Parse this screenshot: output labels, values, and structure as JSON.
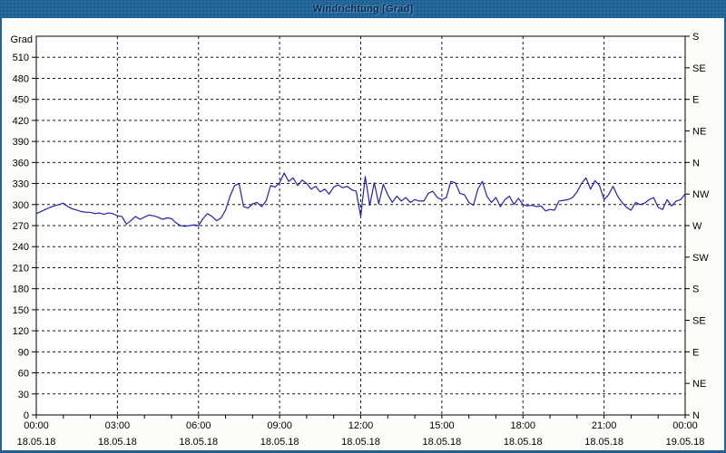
{
  "window": {
    "title": "Windrichtung [Grad]",
    "frame_color": "#1e6295",
    "content_background": "#fcfdfb"
  },
  "chart_data": {
    "type": "line",
    "title": "Windrichtung [Grad]",
    "series_name": "Windrichtung",
    "series_color": "#2121b2",
    "grid_color": "#1a1a1a",
    "axis_color": "#000000",
    "label_color": "#000000",
    "grid": "on",
    "y_left": {
      "unit_label": "Grad",
      "min": 0,
      "max": 540,
      "tick_step": 30,
      "tick_labels": [
        "0",
        "30",
        "60",
        "90",
        "120",
        "150",
        "180",
        "210",
        "240",
        "270",
        "300",
        "330",
        "360",
        "390",
        "420",
        "450",
        "480",
        "510"
      ]
    },
    "y_right": {
      "ticks": [
        {
          "value": 0,
          "label": "N"
        },
        {
          "value": 45,
          "label": "NE"
        },
        {
          "value": 90,
          "label": "E"
        },
        {
          "value": 135,
          "label": "SE"
        },
        {
          "value": 180,
          "label": "S"
        },
        {
          "value": 225,
          "label": "SW"
        },
        {
          "value": 270,
          "label": "W"
        },
        {
          "value": 315,
          "label": "NW"
        },
        {
          "value": 360,
          "label": "N"
        },
        {
          "value": 405,
          "label": "NE"
        },
        {
          "value": 450,
          "label": "E"
        },
        {
          "value": 495,
          "label": "SE"
        },
        {
          "value": 540,
          "label": "S"
        }
      ]
    },
    "x": {
      "range_hours": [
        0,
        24
      ],
      "minor_tick_hours": 1,
      "grid_step_hours": 3,
      "ticks": [
        {
          "hour": 0,
          "time": "00:00",
          "date": "18.05.18"
        },
        {
          "hour": 3,
          "time": "03:00",
          "date": "18.05.18"
        },
        {
          "hour": 6,
          "time": "06:00",
          "date": "18.05.18"
        },
        {
          "hour": 9,
          "time": "09:00",
          "date": "18.05.18"
        },
        {
          "hour": 12,
          "time": "12:00",
          "date": "18.05.18"
        },
        {
          "hour": 15,
          "time": "15:00",
          "date": "18.05.18"
        },
        {
          "hour": 18,
          "time": "18:00",
          "date": "18.05.18"
        },
        {
          "hour": 21,
          "time": "21:00",
          "date": "18.05.18"
        },
        {
          "hour": 24,
          "time": "00:00",
          "date": "19.05.18"
        }
      ]
    },
    "points_format": [
      "minute_of_day",
      "direction_deg"
    ],
    "points": [
      [
        0,
        287
      ],
      [
        10,
        290
      ],
      [
        20,
        293
      ],
      [
        30,
        296
      ],
      [
        40,
        298
      ],
      [
        50,
        300
      ],
      [
        60,
        302
      ],
      [
        70,
        297
      ],
      [
        80,
        294
      ],
      [
        90,
        292
      ],
      [
        100,
        290
      ],
      [
        110,
        289
      ],
      [
        120,
        289
      ],
      [
        130,
        287
      ],
      [
        140,
        288
      ],
      [
        150,
        286
      ],
      [
        160,
        288
      ],
      [
        170,
        287
      ],
      [
        180,
        284
      ],
      [
        190,
        283
      ],
      [
        200,
        272
      ],
      [
        210,
        277
      ],
      [
        220,
        283
      ],
      [
        230,
        279
      ],
      [
        240,
        282
      ],
      [
        250,
        285
      ],
      [
        260,
        284
      ],
      [
        270,
        282
      ],
      [
        280,
        279
      ],
      [
        290,
        281
      ],
      [
        300,
        280
      ],
      [
        310,
        274
      ],
      [
        320,
        270
      ],
      [
        330,
        269
      ],
      [
        340,
        270
      ],
      [
        350,
        271
      ],
      [
        360,
        270
      ],
      [
        370,
        280
      ],
      [
        380,
        287
      ],
      [
        390,
        283
      ],
      [
        400,
        277
      ],
      [
        410,
        281
      ],
      [
        420,
        292
      ],
      [
        430,
        312
      ],
      [
        440,
        327
      ],
      [
        450,
        330
      ],
      [
        460,
        297
      ],
      [
        470,
        295
      ],
      [
        480,
        301
      ],
      [
        490,
        303
      ],
      [
        500,
        297
      ],
      [
        510,
        305
      ],
      [
        520,
        327
      ],
      [
        530,
        325
      ],
      [
        540,
        331
      ],
      [
        550,
        345
      ],
      [
        560,
        333
      ],
      [
        570,
        338
      ],
      [
        580,
        327
      ],
      [
        590,
        335
      ],
      [
        600,
        330
      ],
      [
        610,
        322
      ],
      [
        620,
        326
      ],
      [
        630,
        318
      ],
      [
        640,
        322
      ],
      [
        650,
        315
      ],
      [
        660,
        325
      ],
      [
        670,
        328
      ],
      [
        680,
        324
      ],
      [
        690,
        326
      ],
      [
        700,
        321
      ],
      [
        710,
        319
      ],
      [
        720,
        283
      ],
      [
        730,
        340
      ],
      [
        740,
        299
      ],
      [
        750,
        331
      ],
      [
        760,
        301
      ],
      [
        770,
        329
      ],
      [
        780,
        314
      ],
      [
        790,
        303
      ],
      [
        800,
        312
      ],
      [
        810,
        305
      ],
      [
        820,
        310
      ],
      [
        830,
        303
      ],
      [
        840,
        307
      ],
      [
        850,
        305
      ],
      [
        860,
        305
      ],
      [
        870,
        316
      ],
      [
        880,
        319
      ],
      [
        890,
        310
      ],
      [
        900,
        307
      ],
      [
        910,
        310
      ],
      [
        920,
        333
      ],
      [
        930,
        331
      ],
      [
        940,
        316
      ],
      [
        950,
        314
      ],
      [
        960,
        303
      ],
      [
        970,
        299
      ],
      [
        980,
        322
      ],
      [
        990,
        333
      ],
      [
        1000,
        312
      ],
      [
        1010,
        303
      ],
      [
        1020,
        310
      ],
      [
        1030,
        297
      ],
      [
        1040,
        307
      ],
      [
        1050,
        312
      ],
      [
        1060,
        300
      ],
      [
        1070,
        309
      ],
      [
        1080,
        300
      ],
      [
        1090,
        298
      ],
      [
        1100,
        299
      ],
      [
        1110,
        297
      ],
      [
        1120,
        298
      ],
      [
        1130,
        291
      ],
      [
        1140,
        293
      ],
      [
        1150,
        292
      ],
      [
        1160,
        305
      ],
      [
        1170,
        306
      ],
      [
        1180,
        307
      ],
      [
        1190,
        310
      ],
      [
        1200,
        318
      ],
      [
        1210,
        330
      ],
      [
        1220,
        338
      ],
      [
        1230,
        322
      ],
      [
        1240,
        334
      ],
      [
        1250,
        327
      ],
      [
        1260,
        307
      ],
      [
        1270,
        314
      ],
      [
        1280,
        326
      ],
      [
        1290,
        312
      ],
      [
        1300,
        303
      ],
      [
        1310,
        296
      ],
      [
        1320,
        292
      ],
      [
        1330,
        303
      ],
      [
        1340,
        300
      ],
      [
        1350,
        302
      ],
      [
        1360,
        307
      ],
      [
        1370,
        310
      ],
      [
        1380,
        296
      ],
      [
        1390,
        293
      ],
      [
        1400,
        307
      ],
      [
        1410,
        298
      ],
      [
        1420,
        305
      ],
      [
        1430,
        307
      ],
      [
        1440,
        315
      ]
    ]
  }
}
